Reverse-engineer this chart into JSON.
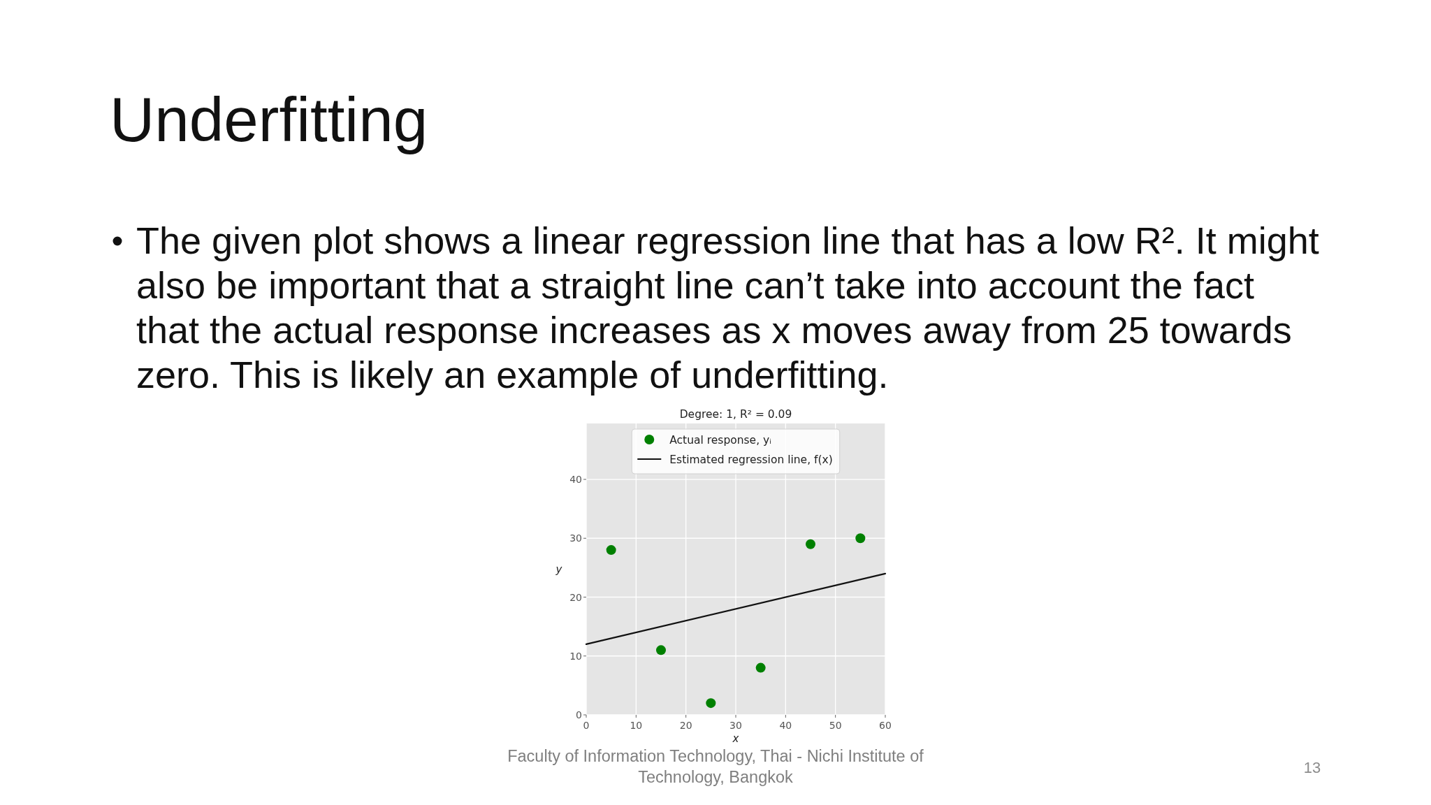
{
  "chart_data": {
    "type": "scatter",
    "title": "Underfitting",
    "subtitle": "Degree: 1, R² = 0.09",
    "xlabel": "x",
    "ylabel": "y",
    "series": [
      {
        "name": "Actual response, yᵢ",
        "color": "#008000",
        "marker": "circle",
        "x": [
          5,
          15,
          25,
          35,
          45,
          55
        ],
        "values": [
          28,
          11,
          2,
          8,
          29,
          30
        ]
      },
      {
        "name": "Estimated regression line, f(x)",
        "type": "line",
        "color": "#111111",
        "line_style": "solid",
        "x": [
          0,
          60
        ],
        "values": [
          12,
          24
        ]
      }
    ],
    "xlim": [
      0,
      60
    ],
    "xticks": [
      0,
      10,
      20,
      30,
      40,
      50,
      60
    ],
    "ylim": [
      0,
      49.5
    ],
    "yticks": [
      0,
      10,
      20,
      30,
      40
    ],
    "grid": true,
    "legend": "top",
    "annotations": [
      "The given plot shows a linear regression line that has a low R². It might also be important that a straight line can’t take into account the fact that the actual response increases as x moves away from 25 towards zero. This is likely an example of underfitting.",
      "Faculty of Information Technology, Thai - Nichi Institute of Technology, Bangkok",
      "13"
    ]
  }
}
